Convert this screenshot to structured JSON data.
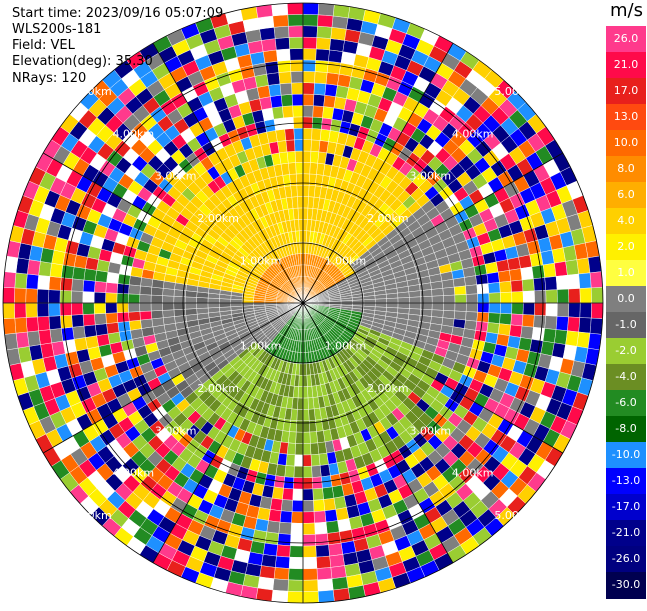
{
  "header": {
    "start_time": "Start time: 2023/09/16 05:07:09",
    "station": "WLS200s-181",
    "field": "Field: VEL",
    "elevation": "Elevation(deg): 35.30",
    "nrays": "NRays: 120"
  },
  "colorbar": {
    "unit": "m/s",
    "levels": [
      {
        "label": "26.0",
        "color": "#ff3a8c"
      },
      {
        "label": "21.0",
        "color": "#ff0a4a"
      },
      {
        "label": "17.0",
        "color": "#e8201c"
      },
      {
        "label": "13.0",
        "color": "#ff4a10"
      },
      {
        "label": "10.0",
        "color": "#ff6a00"
      },
      {
        "label": "8.0",
        "color": "#ff8c00"
      },
      {
        "label": "6.0",
        "color": "#ffae00"
      },
      {
        "label": "4.0",
        "color": "#ffd000"
      },
      {
        "label": "2.0",
        "color": "#fff000"
      },
      {
        "label": "1.0",
        "color": "#ffff40"
      },
      {
        "label": "0.0",
        "color": "#7f7f7f"
      },
      {
        "label": "-1.0",
        "color": "#666666"
      },
      {
        "label": "-2.0",
        "color": "#9acd32"
      },
      {
        "label": "-4.0",
        "color": "#6b8e23"
      },
      {
        "label": "-6.0",
        "color": "#228b22"
      },
      {
        "label": "-8.0",
        "color": "#006400"
      },
      {
        "label": "-10.0",
        "color": "#1e90ff"
      },
      {
        "label": "-13.0",
        "color": "#0000ff"
      },
      {
        "label": "-17.0",
        "color": "#0000cd"
      },
      {
        "label": "-21.0",
        "color": "#00008b"
      },
      {
        "label": "-26.0",
        "color": "#000080"
      },
      {
        "label": "-30.0",
        "color": "#000050"
      }
    ]
  },
  "ppi": {
    "range_rings_km": [
      "1.00km",
      "2.00km",
      "3.00km",
      "4.00km",
      "5.00km"
    ],
    "azimuth_spokes_deg": [
      0,
      30,
      60,
      90,
      120,
      150,
      180,
      210,
      240,
      270,
      300,
      330
    ],
    "nrays": 120
  }
}
